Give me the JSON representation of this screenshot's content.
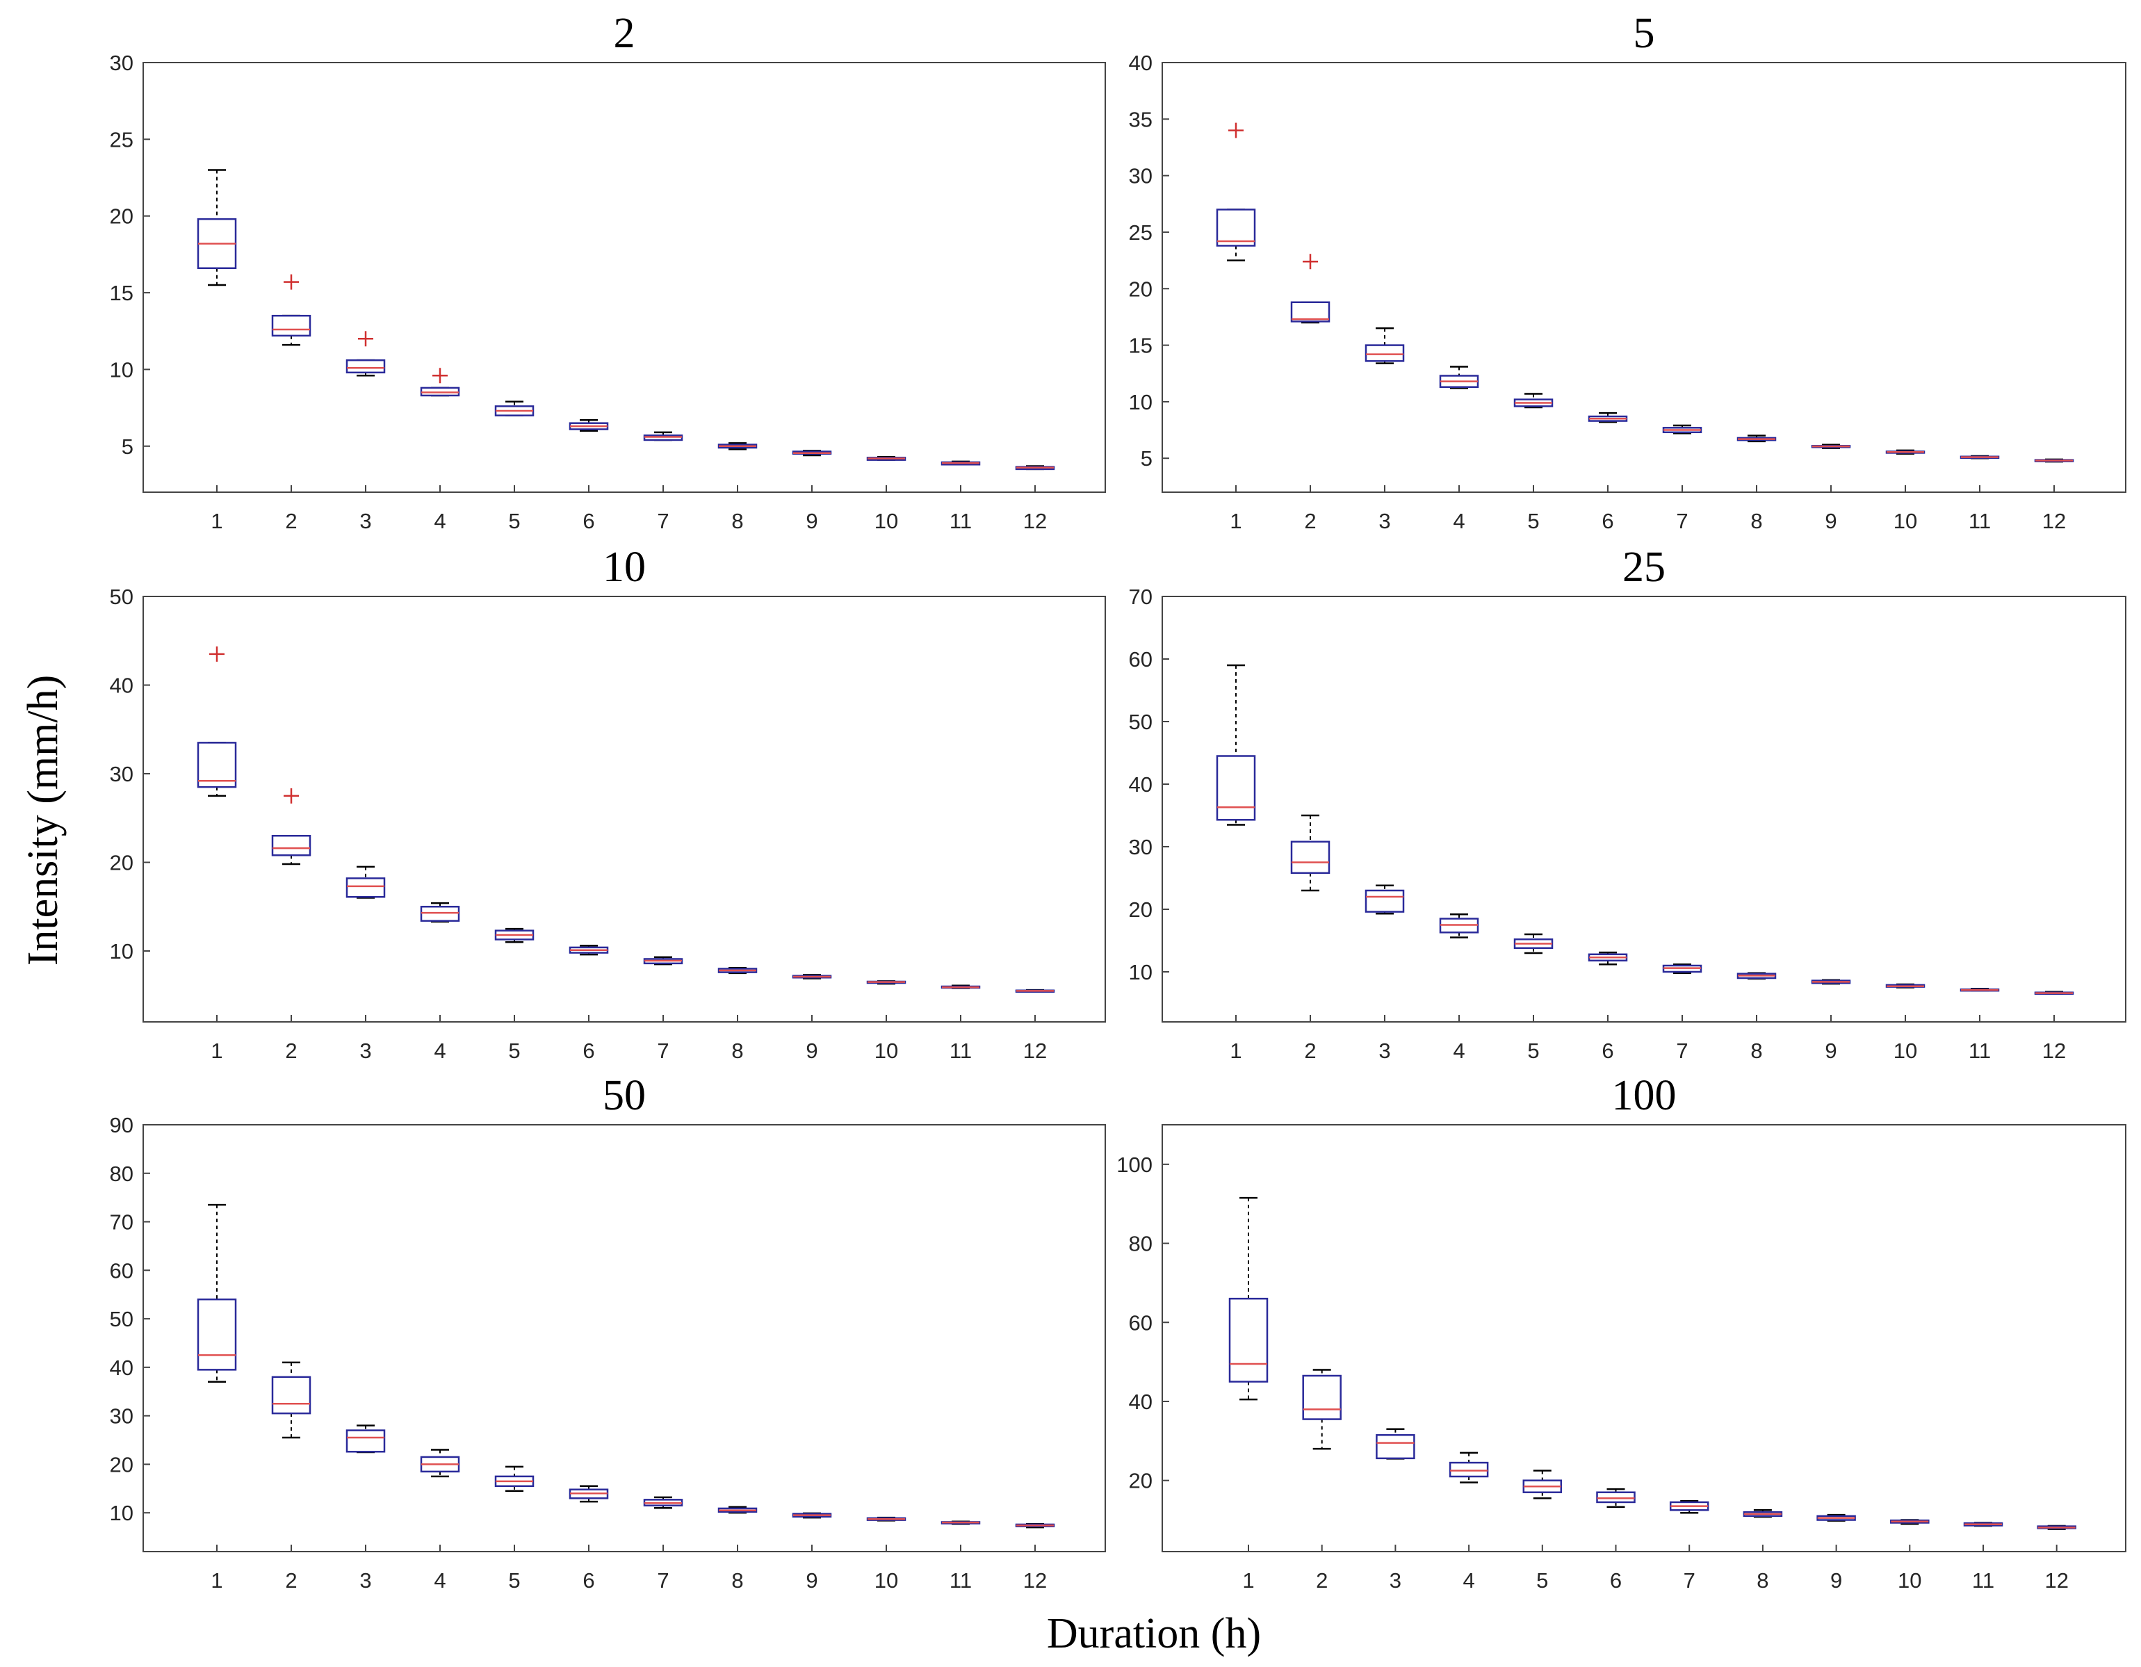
{
  "figure": {
    "xlabel": "Duration (h)",
    "ylabel": "Intensity (mm/h)"
  },
  "colors": {
    "box": "#2a2a9a",
    "median": "#e05050",
    "outlier": "#d03030",
    "whisker": "#000000"
  },
  "chart_data": [
    {
      "type": "box",
      "title": "2",
      "categories": [
        "1",
        "2",
        "3",
        "4",
        "5",
        "6",
        "7",
        "8",
        "9",
        "10",
        "11",
        "12"
      ],
      "ylim": [
        2,
        30
      ],
      "yticks": [
        5,
        10,
        15,
        20,
        25,
        30
      ],
      "boxes": [
        {
          "whislo": 15.5,
          "q1": 16.6,
          "med": 18.2,
          "q3": 19.8,
          "whishi": 23.0,
          "fliers": []
        },
        {
          "whislo": 11.6,
          "q1": 12.2,
          "med": 12.6,
          "q3": 13.5,
          "whishi": 13.5,
          "fliers": [
            15.7
          ]
        },
        {
          "whislo": 9.6,
          "q1": 9.8,
          "med": 10.1,
          "q3": 10.6,
          "whishi": 10.6,
          "fliers": [
            12.0
          ]
        },
        {
          "whislo": 8.3,
          "q1": 8.3,
          "med": 8.5,
          "q3": 8.8,
          "whishi": 8.8,
          "fliers": [
            9.6
          ]
        },
        {
          "whislo": 7.0,
          "q1": 7.0,
          "med": 7.3,
          "q3": 7.6,
          "whishi": 7.9,
          "fliers": []
        },
        {
          "whislo": 6.0,
          "q1": 6.1,
          "med": 6.3,
          "q3": 6.5,
          "whishi": 6.7,
          "fliers": []
        },
        {
          "whislo": 5.4,
          "q1": 5.4,
          "med": 5.6,
          "q3": 5.7,
          "whishi": 5.9,
          "fliers": []
        },
        {
          "whislo": 4.8,
          "q1": 4.9,
          "med": 5.0,
          "q3": 5.1,
          "whishi": 5.2,
          "fliers": []
        },
        {
          "whislo": 4.4,
          "q1": 4.5,
          "med": 4.55,
          "q3": 4.65,
          "whishi": 4.7,
          "fliers": []
        },
        {
          "whislo": 4.1,
          "q1": 4.1,
          "med": 4.2,
          "q3": 4.25,
          "whishi": 4.3,
          "fliers": []
        },
        {
          "whislo": 3.8,
          "q1": 3.8,
          "med": 3.9,
          "q3": 3.95,
          "whishi": 4.0,
          "fliers": []
        },
        {
          "whislo": 3.5,
          "q1": 3.5,
          "med": 3.6,
          "q3": 3.65,
          "whishi": 3.7,
          "fliers": []
        }
      ]
    },
    {
      "type": "box",
      "title": "5",
      "categories": [
        "1",
        "2",
        "3",
        "4",
        "5",
        "6",
        "7",
        "8",
        "9",
        "10",
        "11",
        "12"
      ],
      "ylim": [
        2,
        40
      ],
      "yticks": [
        5,
        10,
        15,
        20,
        25,
        30,
        35,
        40
      ],
      "boxes": [
        {
          "whislo": 22.5,
          "q1": 23.8,
          "med": 24.2,
          "q3": 27.0,
          "whishi": 27.0,
          "fliers": [
            34.0
          ]
        },
        {
          "whislo": 17.0,
          "q1": 17.1,
          "med": 17.3,
          "q3": 18.8,
          "whishi": 18.8,
          "fliers": [
            22.4
          ]
        },
        {
          "whislo": 13.4,
          "q1": 13.6,
          "med": 14.2,
          "q3": 15.0,
          "whishi": 16.5,
          "fliers": []
        },
        {
          "whislo": 11.2,
          "q1": 11.3,
          "med": 11.8,
          "q3": 12.3,
          "whishi": 13.1,
          "fliers": []
        },
        {
          "whislo": 9.5,
          "q1": 9.6,
          "med": 9.9,
          "q3": 10.2,
          "whishi": 10.7,
          "fliers": []
        },
        {
          "whislo": 8.2,
          "q1": 8.3,
          "med": 8.5,
          "q3": 8.7,
          "whishi": 9.0,
          "fliers": []
        },
        {
          "whislo": 7.2,
          "q1": 7.3,
          "med": 7.5,
          "q3": 7.7,
          "whishi": 7.9,
          "fliers": []
        },
        {
          "whislo": 6.5,
          "q1": 6.6,
          "med": 6.7,
          "q3": 6.8,
          "whishi": 7.0,
          "fliers": []
        },
        {
          "whislo": 5.9,
          "q1": 6.0,
          "med": 6.05,
          "q3": 6.1,
          "whishi": 6.2,
          "fliers": []
        },
        {
          "whislo": 5.4,
          "q1": 5.5,
          "med": 5.55,
          "q3": 5.6,
          "whishi": 5.7,
          "fliers": []
        },
        {
          "whislo": 5.0,
          "q1": 5.05,
          "med": 5.1,
          "q3": 5.15,
          "whishi": 5.2,
          "fliers": []
        },
        {
          "whislo": 4.7,
          "q1": 4.75,
          "med": 4.8,
          "q3": 4.85,
          "whishi": 4.9,
          "fliers": []
        }
      ]
    },
    {
      "type": "box",
      "title": "10",
      "categories": [
        "1",
        "2",
        "3",
        "4",
        "5",
        "6",
        "7",
        "8",
        "9",
        "10",
        "11",
        "12"
      ],
      "ylim": [
        2,
        50
      ],
      "yticks": [
        10,
        20,
        30,
        40,
        50
      ],
      "boxes": [
        {
          "whislo": 27.5,
          "q1": 28.5,
          "med": 29.2,
          "q3": 33.5,
          "whishi": 33.5,
          "fliers": [
            43.5
          ]
        },
        {
          "whislo": 19.8,
          "q1": 20.8,
          "med": 21.6,
          "q3": 23.0,
          "whishi": 23.0,
          "fliers": [
            27.5
          ]
        },
        {
          "whislo": 16.0,
          "q1": 16.1,
          "med": 17.3,
          "q3": 18.2,
          "whishi": 19.5,
          "fliers": []
        },
        {
          "whislo": 13.3,
          "q1": 13.4,
          "med": 14.3,
          "q3": 15.0,
          "whishi": 15.4,
          "fliers": []
        },
        {
          "whislo": 11.0,
          "q1": 11.3,
          "med": 11.8,
          "q3": 12.3,
          "whishi": 12.5,
          "fliers": []
        },
        {
          "whislo": 9.6,
          "q1": 9.8,
          "med": 10.1,
          "q3": 10.4,
          "whishi": 10.6,
          "fliers": []
        },
        {
          "whislo": 8.5,
          "q1": 8.6,
          "med": 8.9,
          "q3": 9.1,
          "whishi": 9.3,
          "fliers": []
        },
        {
          "whislo": 7.5,
          "q1": 7.6,
          "med": 7.8,
          "q3": 8.0,
          "whishi": 8.1,
          "fliers": []
        },
        {
          "whislo": 6.9,
          "q1": 7.0,
          "med": 7.1,
          "q3": 7.2,
          "whishi": 7.3,
          "fliers": []
        },
        {
          "whislo": 6.3,
          "q1": 6.4,
          "med": 6.5,
          "q3": 6.55,
          "whishi": 6.6,
          "fliers": []
        },
        {
          "whislo": 5.8,
          "q1": 5.85,
          "med": 5.9,
          "q3": 6.0,
          "whishi": 6.1,
          "fliers": []
        },
        {
          "whislo": 5.4,
          "q1": 5.45,
          "med": 5.5,
          "q3": 5.55,
          "whishi": 5.6,
          "fliers": []
        }
      ]
    },
    {
      "type": "box",
      "title": "25",
      "categories": [
        "1",
        "2",
        "3",
        "4",
        "5",
        "6",
        "7",
        "8",
        "9",
        "10",
        "11",
        "12"
      ],
      "ylim": [
        2,
        70
      ],
      "yticks": [
        10,
        20,
        30,
        40,
        50,
        60,
        70
      ],
      "boxes": [
        {
          "whislo": 33.5,
          "q1": 34.3,
          "med": 36.3,
          "q3": 44.5,
          "whishi": 59.0,
          "fliers": []
        },
        {
          "whislo": 23.0,
          "q1": 25.8,
          "med": 27.5,
          "q3": 30.8,
          "whishi": 35.0,
          "fliers": []
        },
        {
          "whislo": 19.3,
          "q1": 19.6,
          "med": 22.0,
          "q3": 23.0,
          "whishi": 23.8,
          "fliers": []
        },
        {
          "whislo": 15.5,
          "q1": 16.3,
          "med": 17.5,
          "q3": 18.5,
          "whishi": 19.2,
          "fliers": []
        },
        {
          "whislo": 13.0,
          "q1": 13.8,
          "med": 14.5,
          "q3": 15.2,
          "whishi": 16.0,
          "fliers": []
        },
        {
          "whislo": 11.2,
          "q1": 11.8,
          "med": 12.3,
          "q3": 12.8,
          "whishi": 13.1,
          "fliers": []
        },
        {
          "whislo": 9.8,
          "q1": 10.0,
          "med": 10.6,
          "q3": 11.0,
          "whishi": 11.2,
          "fliers": []
        },
        {
          "whislo": 8.9,
          "q1": 9.0,
          "med": 9.4,
          "q3": 9.7,
          "whishi": 9.8,
          "fliers": []
        },
        {
          "whislo": 8.1,
          "q1": 8.2,
          "med": 8.4,
          "q3": 8.6,
          "whishi": 8.7,
          "fliers": []
        },
        {
          "whislo": 7.5,
          "q1": 7.6,
          "med": 7.7,
          "q3": 7.9,
          "whishi": 8.0,
          "fliers": []
        },
        {
          "whislo": 7.0,
          "q1": 7.05,
          "med": 7.1,
          "q3": 7.2,
          "whishi": 7.3,
          "fliers": []
        },
        {
          "whislo": 6.5,
          "q1": 6.55,
          "med": 6.6,
          "q3": 6.7,
          "whishi": 6.8,
          "fliers": []
        }
      ]
    },
    {
      "type": "box",
      "title": "50",
      "categories": [
        "1",
        "2",
        "3",
        "4",
        "5",
        "6",
        "7",
        "8",
        "9",
        "10",
        "11",
        "12"
      ],
      "ylim": [
        2,
        90
      ],
      "yticks": [
        10,
        20,
        30,
        40,
        50,
        60,
        70,
        80,
        90
      ],
      "boxes": [
        {
          "whislo": 37.0,
          "q1": 39.5,
          "med": 42.5,
          "q3": 54.0,
          "whishi": 73.5,
          "fliers": []
        },
        {
          "whislo": 25.5,
          "q1": 30.5,
          "med": 32.5,
          "q3": 38.0,
          "whishi": 41.0,
          "fliers": []
        },
        {
          "whislo": 22.5,
          "q1": 22.6,
          "med": 25.5,
          "q3": 27.0,
          "whishi": 28.0,
          "fliers": []
        },
        {
          "whislo": 17.5,
          "q1": 18.5,
          "med": 20.0,
          "q3": 21.5,
          "whishi": 23.0,
          "fliers": []
        },
        {
          "whislo": 14.5,
          "q1": 15.5,
          "med": 16.5,
          "q3": 17.5,
          "whishi": 19.5,
          "fliers": []
        },
        {
          "whislo": 12.3,
          "q1": 13.0,
          "med": 14.0,
          "q3": 14.8,
          "whishi": 15.5,
          "fliers": []
        },
        {
          "whislo": 11.0,
          "q1": 11.5,
          "med": 12.0,
          "q3": 12.7,
          "whishi": 13.2,
          "fliers": []
        },
        {
          "whislo": 10.0,
          "q1": 10.2,
          "med": 10.5,
          "q3": 10.9,
          "whishi": 11.2,
          "fliers": []
        },
        {
          "whislo": 9.0,
          "q1": 9.2,
          "med": 9.5,
          "q3": 9.8,
          "whishi": 9.9,
          "fliers": []
        },
        {
          "whislo": 8.4,
          "q1": 8.5,
          "med": 8.7,
          "q3": 8.9,
          "whishi": 9.0,
          "fliers": []
        },
        {
          "whislo": 7.7,
          "q1": 7.8,
          "med": 8.0,
          "q3": 8.1,
          "whishi": 8.2,
          "fliers": []
        },
        {
          "whislo": 7.0,
          "q1": 7.2,
          "med": 7.4,
          "q3": 7.6,
          "whishi": 7.7,
          "fliers": []
        }
      ]
    },
    {
      "type": "box",
      "title": "100",
      "categories": [
        "1",
        "2",
        "3",
        "4",
        "5",
        "6",
        "7",
        "8",
        "9",
        "10",
        "11",
        "12"
      ],
      "ylim": [
        2,
        110
      ],
      "yticks": [
        20,
        40,
        60,
        80,
        100
      ],
      "boxes": [
        {
          "whislo": 40.5,
          "q1": 45.0,
          "med": 49.5,
          "q3": 66.0,
          "whishi": 91.5,
          "fliers": []
        },
        {
          "whislo": 28.0,
          "q1": 35.5,
          "med": 38.0,
          "q3": 46.5,
          "whishi": 48.0,
          "fliers": []
        },
        {
          "whislo": 25.5,
          "q1": 25.6,
          "med": 29.5,
          "q3": 31.5,
          "whishi": 33.0,
          "fliers": []
        },
        {
          "whislo": 19.5,
          "q1": 21.0,
          "med": 22.5,
          "q3": 24.5,
          "whishi": 27.0,
          "fliers": []
        },
        {
          "whislo": 15.5,
          "q1": 17.0,
          "med": 18.5,
          "q3": 20.0,
          "whishi": 22.5,
          "fliers": []
        },
        {
          "whislo": 13.3,
          "q1": 14.5,
          "med": 15.5,
          "q3": 17.0,
          "whishi": 17.8,
          "fliers": []
        },
        {
          "whislo": 11.8,
          "q1": 12.5,
          "med": 13.5,
          "q3": 14.5,
          "whishi": 14.8,
          "fliers": []
        },
        {
          "whislo": 10.8,
          "q1": 11.0,
          "med": 11.5,
          "q3": 12.0,
          "whishi": 12.5,
          "fliers": []
        },
        {
          "whislo": 9.8,
          "q1": 10.0,
          "med": 10.5,
          "q3": 11.0,
          "whishi": 11.3,
          "fliers": []
        },
        {
          "whislo": 9.0,
          "q1": 9.3,
          "med": 9.6,
          "q3": 9.9,
          "whishi": 10.0,
          "fliers": []
        },
        {
          "whislo": 8.5,
          "q1": 8.6,
          "med": 8.9,
          "q3": 9.2,
          "whishi": 9.3,
          "fliers": []
        },
        {
          "whislo": 7.7,
          "q1": 7.9,
          "med": 8.1,
          "q3": 8.4,
          "whishi": 8.5,
          "fliers": []
        }
      ]
    }
  ]
}
